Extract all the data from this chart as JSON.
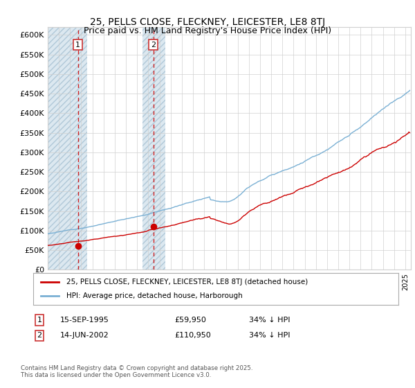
{
  "title": "25, PELLS CLOSE, FLECKNEY, LEICESTER, LE8 8TJ",
  "subtitle": "Price paid vs. HM Land Registry's House Price Index (HPI)",
  "ylim": [
    0,
    620000
  ],
  "xlim_start": 1993.0,
  "xlim_end": 2025.5,
  "yticks": [
    0,
    50000,
    100000,
    150000,
    200000,
    250000,
    300000,
    350000,
    400000,
    450000,
    500000,
    550000,
    600000
  ],
  "ytick_labels": [
    "£0",
    "£50K",
    "£100K",
    "£150K",
    "£200K",
    "£250K",
    "£300K",
    "£350K",
    "£400K",
    "£450K",
    "£500K",
    "£550K",
    "£600K"
  ],
  "sale1_x": 1995.708,
  "sale1_y": 59950,
  "sale1_label": "1",
  "sale1_date": "15-SEP-1995",
  "sale1_price": "£59,950",
  "sale1_note": "34% ↓ HPI",
  "sale2_x": 2002.456,
  "sale2_y": 110950,
  "sale2_label": "2",
  "sale2_date": "14-JUN-2002",
  "sale2_price": "£110,950",
  "sale2_note": "34% ↓ HPI",
  "hpi_color": "#7ab0d4",
  "price_color": "#cc0000",
  "shaded_color": "#dce8f0",
  "hatch_color": "#b0c8d8",
  "shade1_start": 1993.0,
  "shade1_end": 1996.5,
  "shade2_start": 2001.5,
  "shade2_end": 2003.5,
  "legend_label1": "25, PELLS CLOSE, FLECKNEY, LEICESTER, LE8 8TJ (detached house)",
  "legend_label2": "HPI: Average price, detached house, Harborough",
  "footnote": "Contains HM Land Registry data © Crown copyright and database right 2025.\nThis data is licensed under the Open Government Licence v3.0.",
  "title_fontsize": 10,
  "grid_color": "#d0d0d0"
}
